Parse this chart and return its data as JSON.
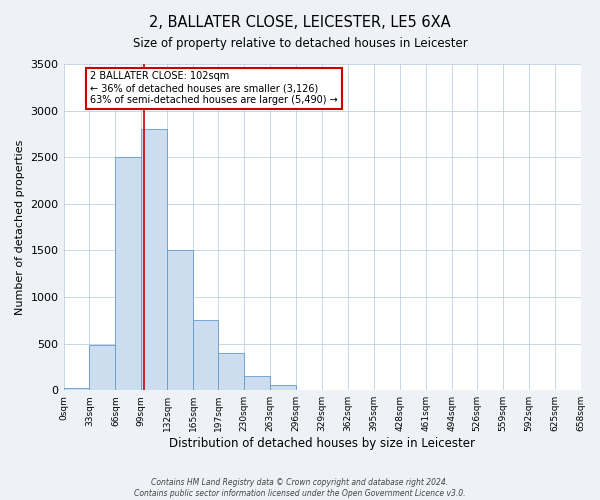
{
  "title": "2, BALLATER CLOSE, LEICESTER, LE5 6XA",
  "subtitle": "Size of property relative to detached houses in Leicester",
  "xlabel": "Distribution of detached houses by size in Leicester",
  "ylabel": "Number of detached properties",
  "bin_edges": [
    0,
    33,
    66,
    99,
    132,
    165,
    197,
    230,
    263,
    296,
    329,
    362,
    395,
    428,
    461,
    494,
    526,
    559,
    592,
    625,
    658
  ],
  "bin_labels": [
    "0sqm",
    "33sqm",
    "66sqm",
    "99sqm",
    "132sqm",
    "165sqm",
    "197sqm",
    "230sqm",
    "263sqm",
    "296sqm",
    "329sqm",
    "362sqm",
    "395sqm",
    "428sqm",
    "461sqm",
    "494sqm",
    "526sqm",
    "559sqm",
    "592sqm",
    "625sqm",
    "658sqm"
  ],
  "counts": [
    25,
    480,
    2500,
    2800,
    1500,
    750,
    400,
    155,
    60,
    5,
    0,
    0,
    0,
    0,
    0,
    0,
    0,
    0,
    0,
    0
  ],
  "bar_color": "#ccddf0",
  "bar_edge_color": "#6699cc",
  "vline_x": 102,
  "vline_color": "#cc0000",
  "box_text_line1": "2 BALLATER CLOSE: 102sqm",
  "box_text_line2": "← 36% of detached houses are smaller (3,126)",
  "box_text_line3": "63% of semi-detached houses are larger (5,490) →",
  "box_color": "#cc0000",
  "box_bg": "#ffffff",
  "ylim": [
    0,
    3500
  ],
  "yticks": [
    0,
    500,
    1000,
    1500,
    2000,
    2500,
    3000,
    3500
  ],
  "footnote1": "Contains HM Land Registry data © Crown copyright and database right 2024.",
  "footnote2": "Contains public sector information licensed under the Open Government Licence v3.0.",
  "bg_color": "#eef2f7",
  "plot_bg_color": "#ffffff",
  "grid_color": "#c0d0e0"
}
